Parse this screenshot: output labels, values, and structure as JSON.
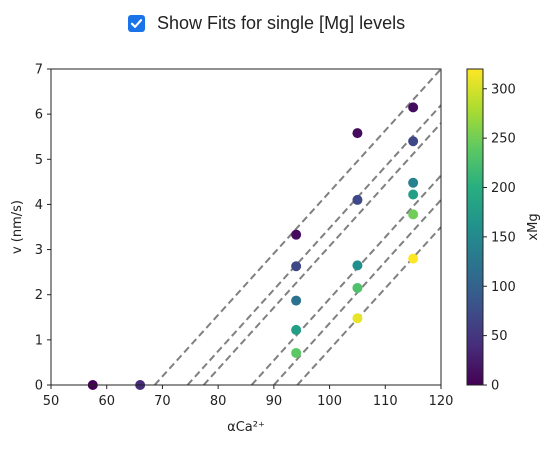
{
  "toggle": {
    "label": "Show Fits for single [Mg] levels",
    "checked": true,
    "accent": "#1a73e8"
  },
  "chart_data": {
    "type": "scatter",
    "title": "",
    "xlabel": "αCa²⁺",
    "ylabel": "v (nm/s)",
    "xlim": [
      50,
      120
    ],
    "ylim": [
      0,
      7
    ],
    "xticks": [
      "50",
      "60",
      "70",
      "80",
      "90",
      "100",
      "110",
      "120"
    ],
    "yticks": [
      "0",
      "1",
      "2",
      "3",
      "4",
      "5",
      "6",
      "7"
    ],
    "grid": false,
    "colormap": "viridis",
    "colorbar": {
      "label": "xMg",
      "range": [
        0,
        320
      ],
      "ticks": [
        "0",
        "50",
        "100",
        "150",
        "200",
        "250",
        "300"
      ]
    },
    "points": [
      {
        "x": 57.5,
        "y": 0.0,
        "mg": 0
      },
      {
        "x": 66,
        "y": 0.0,
        "mg": 40
      },
      {
        "x": 94,
        "y": 3.33,
        "mg": 10
      },
      {
        "x": 94,
        "y": 2.63,
        "mg": 70
      },
      {
        "x": 94,
        "y": 1.87,
        "mg": 120
      },
      {
        "x": 94,
        "y": 1.22,
        "mg": 180
      },
      {
        "x": 94,
        "y": 0.71,
        "mg": 240
      },
      {
        "x": 105,
        "y": 5.58,
        "mg": 10
      },
      {
        "x": 105,
        "y": 4.1,
        "mg": 70
      },
      {
        "x": 105,
        "y": 2.65,
        "mg": 160
      },
      {
        "x": 105,
        "y": 2.15,
        "mg": 230
      },
      {
        "x": 105,
        "y": 1.48,
        "mg": 310
      },
      {
        "x": 115,
        "y": 6.15,
        "mg": 10
      },
      {
        "x": 115,
        "y": 5.4,
        "mg": 70
      },
      {
        "x": 115,
        "y": 4.48,
        "mg": 140
      },
      {
        "x": 115,
        "y": 4.22,
        "mg": 180
      },
      {
        "x": 115,
        "y": 3.78,
        "mg": 250
      },
      {
        "x": 115,
        "y": 2.8,
        "mg": 320
      }
    ],
    "fit_lines": [
      {
        "x": [
          68.6,
          120
        ],
        "y": [
          0,
          7.0
        ]
      },
      {
        "x": [
          74.5,
          120
        ],
        "y": [
          0,
          6.2
        ]
      },
      {
        "x": [
          77.4,
          120
        ],
        "y": [
          0,
          5.8
        ]
      },
      {
        "x": [
          86.0,
          120
        ],
        "y": [
          0,
          4.64
        ]
      },
      {
        "x": [
          90.0,
          120
        ],
        "y": [
          0,
          4.1
        ]
      },
      {
        "x": [
          94.2,
          120
        ],
        "y": [
          0,
          3.5
        ]
      }
    ],
    "fit_line_color": "#808080"
  }
}
